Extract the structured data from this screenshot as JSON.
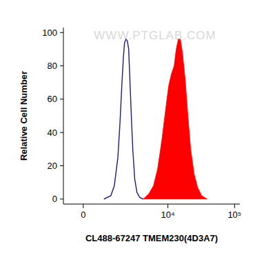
{
  "chart_data": {
    "type": "area",
    "annotations": [
      "WWW.PTGLAB.COM"
    ],
    "x_label": "CL488-67247 TMEM230(4D3A7)",
    "y_label": "Relative Cell Number",
    "log": "x",
    "xlim": [
      -800,
      120000
    ],
    "xticks": [
      0,
      {
        "value": 10000,
        "label": "10⁴"
      },
      {
        "value": 100000,
        "label": "10⁵"
      }
    ],
    "ylim": [
      -3,
      103
    ],
    "yticks": [
      0,
      20,
      40,
      60,
      80,
      100
    ],
    "series": [
      {
        "type": "line",
        "color": "#1c1c78",
        "x": [
          838,
          1189,
          1394,
          1620,
          1762,
          1913,
          2021,
          2119,
          2238,
          2357,
          2476,
          2605,
          2735,
          2886,
          3102,
          3362,
          3719,
          4205
        ],
        "values": [
          0,
          2,
          8,
          25,
          45,
          70,
          85,
          94,
          96,
          95,
          90,
          70,
          50,
          30,
          12,
          4,
          1,
          0
        ]
      },
      {
        "type": "area",
        "color": "#ff0000",
        "x": [
          4205,
          5102,
          6043,
          6983,
          8075,
          9318,
          10259,
          11275,
          12410,
          13329,
          14323,
          15372,
          16507,
          18150,
          19955,
          21955,
          24744,
          27890,
          32106,
          38880
        ],
        "values": [
          0,
          3,
          8,
          18,
          35,
          55,
          68,
          75,
          80,
          90,
          96,
          96,
          88,
          72,
          50,
          30,
          15,
          7,
          2,
          0
        ]
      }
    ]
  }
}
